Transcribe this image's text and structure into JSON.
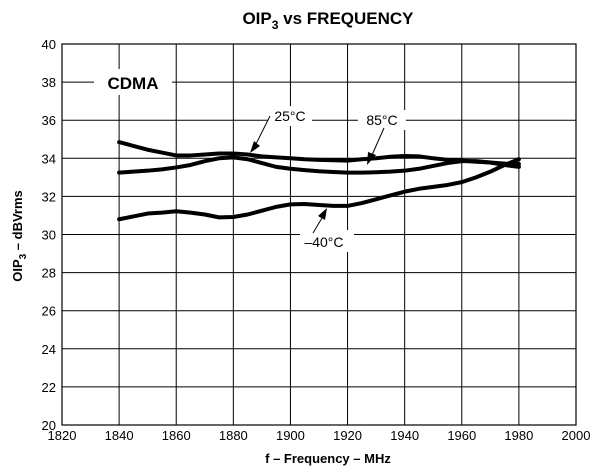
{
  "chart_data": {
    "type": "line",
    "title": "OIP",
    "title_sub": "3",
    "title_rest": " vs FREQUENCY",
    "xlabel": "f – Frequency – MHz",
    "ylabel_main": "OIP",
    "ylabel_sub": "3",
    "ylabel_rest": " – dBVrms",
    "xlim": [
      1820,
      2000
    ],
    "ylim": [
      20,
      40
    ],
    "xticks": [
      1820,
      1840,
      1860,
      1880,
      1900,
      1920,
      1940,
      1960,
      1980,
      2000
    ],
    "yticks": [
      20,
      22,
      24,
      26,
      28,
      30,
      32,
      34,
      36,
      38,
      40
    ],
    "grid": true,
    "series": [
      {
        "name": "25°C",
        "x": [
          1840,
          1845,
          1850,
          1855,
          1860,
          1865,
          1870,
          1875,
          1880,
          1885,
          1890,
          1895,
          1900,
          1905,
          1910,
          1915,
          1920,
          1925,
          1930,
          1935,
          1940,
          1945,
          1950,
          1955,
          1960,
          1965,
          1970,
          1975,
          1980
        ],
        "y": [
          34.85,
          34.65,
          34.45,
          34.3,
          34.15,
          34.15,
          34.2,
          34.25,
          34.25,
          34.2,
          34.1,
          34.05,
          34.0,
          33.95,
          33.92,
          33.9,
          33.88,
          33.95,
          34.0,
          34.08,
          34.12,
          34.1,
          34.0,
          33.92,
          33.88,
          33.82,
          33.78,
          33.72,
          33.7
        ]
      },
      {
        "name": "85°C",
        "x": [
          1840,
          1845,
          1850,
          1855,
          1860,
          1865,
          1870,
          1875,
          1880,
          1885,
          1890,
          1895,
          1900,
          1905,
          1910,
          1915,
          1920,
          1925,
          1930,
          1935,
          1940,
          1945,
          1950,
          1955,
          1960,
          1965,
          1970,
          1975,
          1980
        ],
        "y": [
          33.25,
          33.3,
          33.35,
          33.42,
          33.52,
          33.65,
          33.85,
          34.0,
          34.05,
          33.95,
          33.75,
          33.55,
          33.45,
          33.38,
          33.32,
          33.28,
          33.25,
          33.25,
          33.27,
          33.3,
          33.35,
          33.45,
          33.6,
          33.75,
          33.85,
          33.85,
          33.78,
          33.65,
          33.55
        ]
      },
      {
        "name": "–40°C",
        "x": [
          1840,
          1845,
          1850,
          1855,
          1860,
          1865,
          1870,
          1875,
          1880,
          1885,
          1890,
          1895,
          1900,
          1905,
          1910,
          1915,
          1920,
          1925,
          1930,
          1935,
          1940,
          1945,
          1950,
          1955,
          1960,
          1965,
          1970,
          1975,
          1980
        ],
        "y": [
          30.8,
          30.95,
          31.1,
          31.15,
          31.22,
          31.15,
          31.05,
          30.9,
          30.92,
          31.05,
          31.25,
          31.45,
          31.58,
          31.6,
          31.55,
          31.5,
          31.5,
          31.65,
          31.85,
          32.05,
          32.25,
          32.4,
          32.5,
          32.6,
          32.75,
          33.0,
          33.3,
          33.65,
          33.95
        ]
      }
    ],
    "annotations": [
      {
        "text": "CDMA"
      },
      {
        "text": "25°C"
      },
      {
        "text": "85°C"
      },
      {
        "text": "–40°C"
      }
    ]
  }
}
